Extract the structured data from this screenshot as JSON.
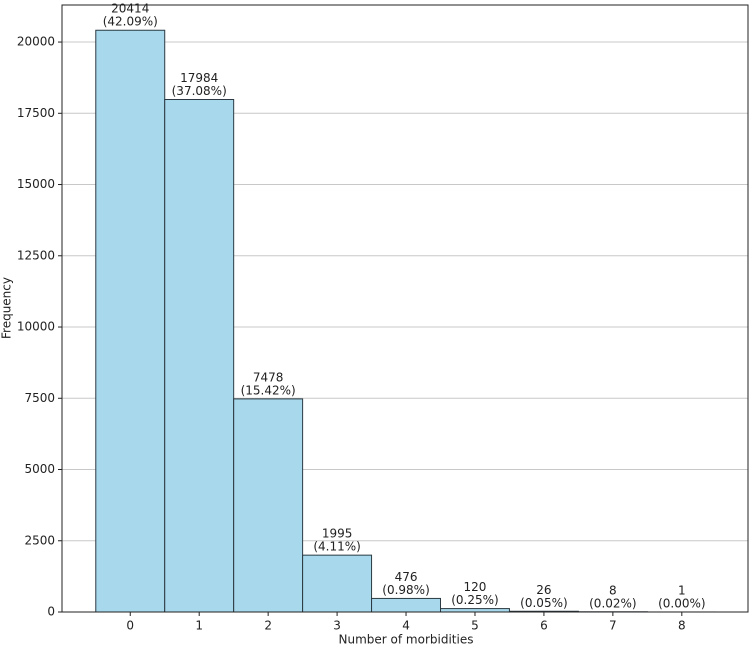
{
  "chart_data": {
    "type": "histogram",
    "x_label": "Number of morbidities",
    "y_label": "Frequency",
    "bins": [
      -0.5,
      0.5,
      1.5,
      2.5,
      3.5,
      4.5,
      5.5,
      6.5,
      7.5,
      8.5
    ],
    "values": [
      20414,
      17984,
      7478,
      1995,
      476,
      120,
      26,
      8,
      1
    ],
    "percent_labels": [
      "(42.09%)",
      "(37.08%)",
      "(15.42%)",
      "(4.11%)",
      "(0.98%)",
      "(0.25%)",
      "(0.05%)",
      "(0.02%)",
      "(0.00%)"
    ],
    "color": "#a8d8ec",
    "edge_color": "#2b3a42",
    "xlim": [
      -0.99,
      8.96
    ],
    "xticks": [
      0,
      1,
      2,
      3,
      4,
      5,
      6,
      7,
      8
    ],
    "ylim": [
      0,
      21300
    ],
    "yticks": [
      0,
      2500,
      5000,
      7500,
      10000,
      12500,
      15000,
      17500,
      20000
    ],
    "grid": true
  }
}
